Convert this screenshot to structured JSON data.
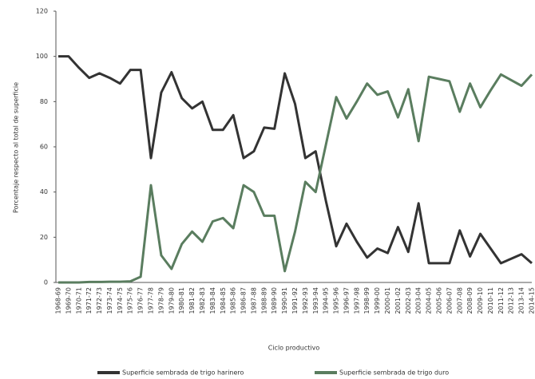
{
  "chart_data": {
    "type": "line",
    "x_label": "Ciclo productivo",
    "y_label": "Porcentaje respecto al total de superficie",
    "categories": [
      "1968-69",
      "1969-70",
      "1970-71",
      "1971-72",
      "1972-73",
      "1973-74",
      "1974-75",
      "1975-76",
      "1976-77",
      "1977-78",
      "1978-79",
      "1979-80",
      "1980-81",
      "1981-82",
      "1982-83",
      "1983-84",
      "1984-85",
      "1985-86",
      "1986-87",
      "1987-88",
      "1988-89",
      "1989-90",
      "1990-91",
      "1991-92",
      "1992-93",
      "1993-94",
      "1994-95",
      "1995-96",
      "1996-97",
      "1997-98",
      "1998-99",
      "1999-00",
      "2000-01",
      "2001-02",
      "2002-03",
      "2003-04",
      "2004-05",
      "2005-06",
      "2006-07",
      "2007-08",
      "2008-09",
      "2009-10",
      "2010-11",
      "2011-12",
      "2012-13",
      "2013-14",
      "2014-15"
    ],
    "series": [
      {
        "name": "Superficie sembrada de trigo harinero",
        "color": "#333333",
        "values": [
          100,
          100,
          95,
          90.5,
          92.5,
          90.5,
          88,
          94,
          94,
          55,
          84,
          93,
          81.5,
          77,
          80,
          67.5,
          67.5,
          74,
          55,
          58,
          68.5,
          68,
          92.5,
          79,
          55,
          58,
          36,
          16,
          26,
          18,
          11,
          15,
          13,
          24.5,
          13.5,
          35,
          8.5,
          8.5,
          8.5,
          23,
          11.5,
          21.5,
          15,
          8.5,
          10.5,
          12.5,
          8.5
        ]
      },
      {
        "name": "Superficie sembrada de trigo duro",
        "color": "#5a7d5f",
        "values": [
          0,
          0,
          0,
          0.2,
          0.2,
          0.3,
          0.3,
          0.5,
          2.5,
          43,
          12,
          6,
          17,
          22.5,
          18,
          27,
          28.5,
          24,
          43,
          40,
          29.5,
          29.5,
          5,
          22.5,
          44.5,
          40,
          61,
          82,
          72.5,
          80,
          88,
          83,
          84.5,
          73,
          85.5,
          62.5,
          91,
          90,
          89,
          75.5,
          88,
          77.5,
          85,
          92,
          89.5,
          87,
          92
        ]
      }
    ],
    "ylim": [
      0,
      120
    ],
    "yticks": [
      0,
      20,
      40,
      60,
      80,
      100,
      120
    ],
    "legend": "bottom"
  }
}
